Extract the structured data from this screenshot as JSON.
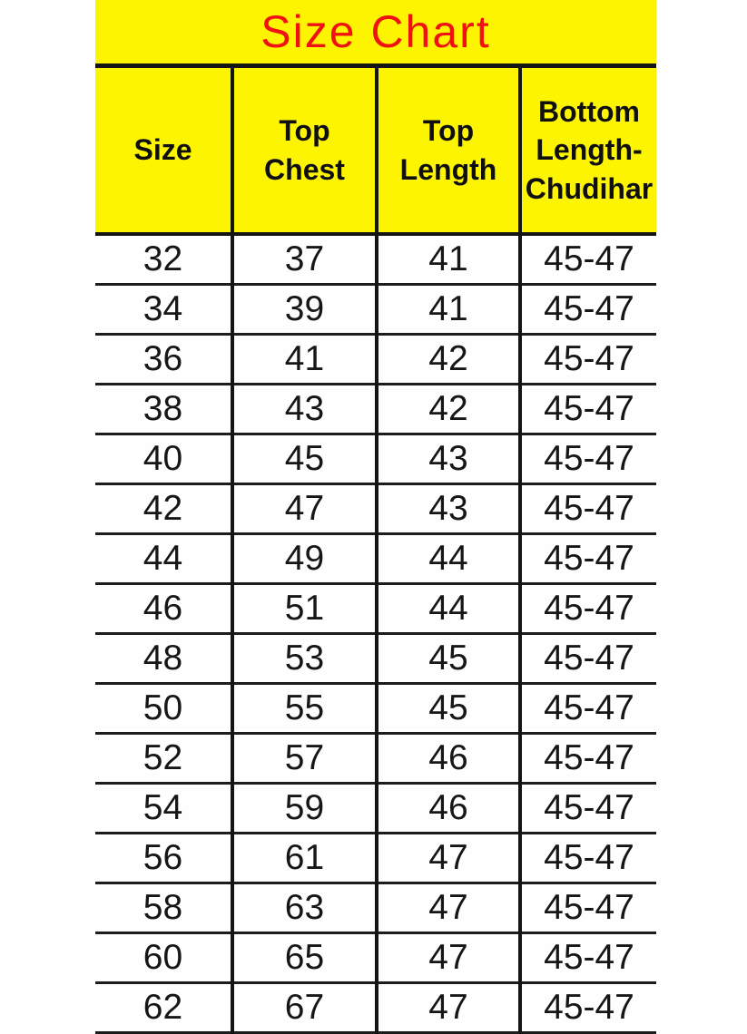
{
  "page": {
    "background": "#ffffff"
  },
  "colors": {
    "header_yellow": "#fdf402",
    "title_red": "#f01111",
    "border_ink": "#141414",
    "row_line": "#1c1c1c",
    "cell_text": "#161616"
  },
  "chart_data": {
    "type": "table",
    "title": "Size Chart",
    "legend_position": "none",
    "columns": [
      {
        "key": "size",
        "label": "Size",
        "lines": [
          "Size"
        ]
      },
      {
        "key": "top_chest",
        "label": "Top Chest",
        "lines": [
          "Top",
          "Chest"
        ]
      },
      {
        "key": "top_length",
        "label": "Top Length",
        "lines": [
          "Top",
          "Length"
        ]
      },
      {
        "key": "bottom_length_chudihar",
        "label": "Bottom Length-Chudihar",
        "lines": [
          "Bottom",
          "Length-",
          "Chudihar"
        ]
      }
    ],
    "rows": [
      [
        "32",
        "37",
        "41",
        "45-47"
      ],
      [
        "34",
        "39",
        "41",
        "45-47"
      ],
      [
        "36",
        "41",
        "42",
        "45-47"
      ],
      [
        "38",
        "43",
        "42",
        "45-47"
      ],
      [
        "40",
        "45",
        "43",
        "45-47"
      ],
      [
        "42",
        "47",
        "43",
        "45-47"
      ],
      [
        "44",
        "49",
        "44",
        "45-47"
      ],
      [
        "46",
        "51",
        "44",
        "45-47"
      ],
      [
        "48",
        "53",
        "45",
        "45-47"
      ],
      [
        "50",
        "55",
        "45",
        "45-47"
      ],
      [
        "52",
        "57",
        "46",
        "45-47"
      ],
      [
        "54",
        "59",
        "46",
        "45-47"
      ],
      [
        "56",
        "61",
        "47",
        "45-47"
      ],
      [
        "58",
        "63",
        "47",
        "45-47"
      ],
      [
        "60",
        "65",
        "47",
        "45-47"
      ],
      [
        "62",
        "67",
        "47",
        "45-47"
      ]
    ]
  }
}
